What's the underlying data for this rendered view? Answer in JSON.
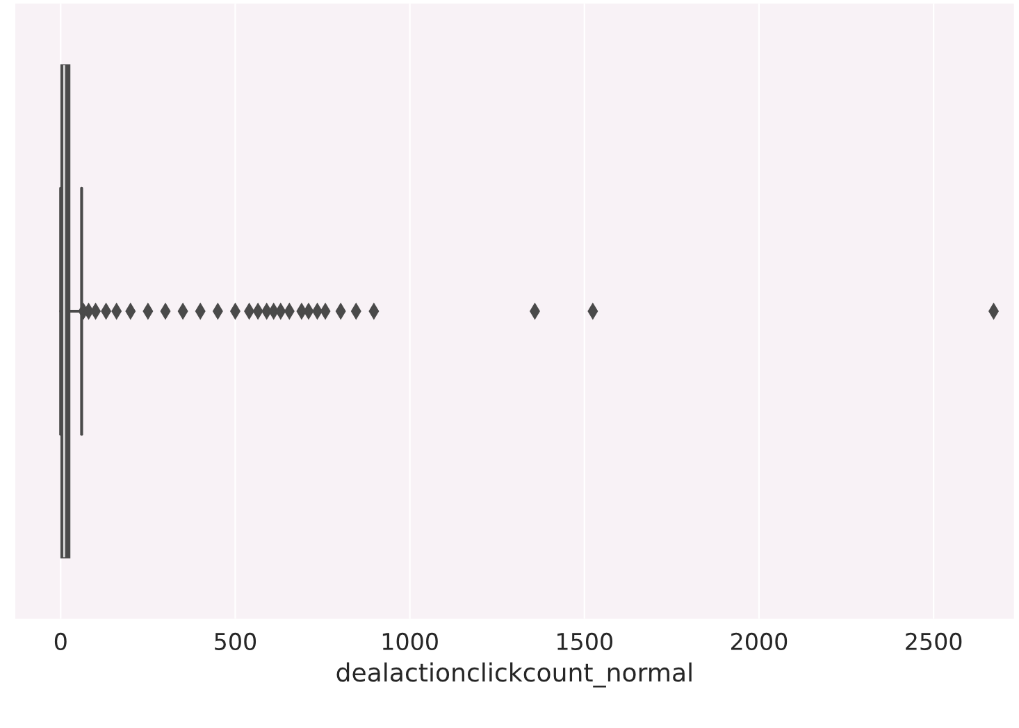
{
  "chart_data": {
    "type": "box",
    "orientation": "horizontal",
    "xlabel": "dealactionclickcount_normal",
    "categories": [
      null
    ],
    "boxes": [
      {
        "low": 0,
        "q1": 2,
        "median": 10,
        "q3": 25,
        "high": 60,
        "outliers": [
          65,
          80,
          100,
          130,
          160,
          200,
          250,
          300,
          350,
          400,
          450,
          500,
          540,
          565,
          590,
          610,
          630,
          655,
          690,
          710,
          735,
          758,
          802,
          846,
          897,
          1358,
          1524,
          2672
        ]
      }
    ],
    "color": "#4a4a4a",
    "xlim": [
      -130,
      2730
    ],
    "xticks": [
      0,
      500,
      1000,
      1500,
      2000,
      2500
    ],
    "grid": "x",
    "tick_labels": "x"
  }
}
